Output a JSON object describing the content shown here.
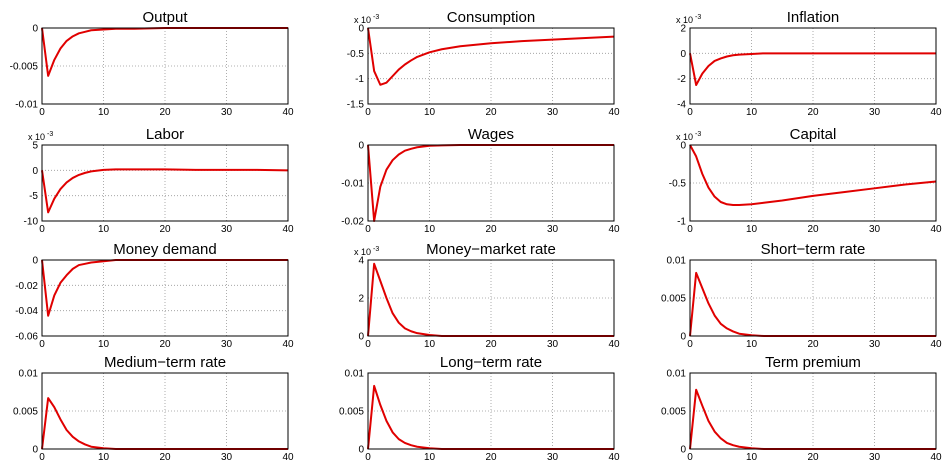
{
  "chart_data": [
    {
      "type": "line",
      "title": "Output",
      "x": [
        0,
        1,
        2,
        3,
        4,
        5,
        6,
        7,
        8,
        10,
        12,
        15,
        20,
        25,
        30,
        35,
        40
      ],
      "values": [
        0,
        -0.0063,
        -0.0042,
        -0.0027,
        -0.0017,
        -0.0011,
        -0.0007,
        -0.0005,
        -0.0003,
        -0.0002,
        -0.0001,
        -0.0001,
        0,
        0,
        0,
        0,
        0
      ],
      "color": "#e00000",
      "xlim": [
        0,
        40
      ],
      "xticks": [
        0,
        10,
        20,
        30,
        40
      ],
      "ylim": [
        -0.01,
        0
      ],
      "yticks": [
        -0.01,
        -0.005,
        0
      ],
      "grid": true
    },
    {
      "type": "line",
      "title": "Consumption",
      "scale_label": "x 10",
      "scale_exponent": "-3",
      "x": [
        0,
        1,
        2,
        3,
        4,
        5,
        6,
        7,
        8,
        10,
        12,
        15,
        20,
        25,
        30,
        35,
        40
      ],
      "values": [
        0,
        -0.85,
        -1.12,
        -1.08,
        -0.95,
        -0.82,
        -0.72,
        -0.64,
        -0.57,
        -0.48,
        -0.42,
        -0.36,
        -0.3,
        -0.26,
        -0.23,
        -0.2,
        -0.17
      ],
      "color": "#e00000",
      "xlim": [
        0,
        40
      ],
      "xticks": [
        0,
        10,
        20,
        30,
        40
      ],
      "ylim": [
        -1.5,
        0
      ],
      "yticks": [
        -1.5,
        -1,
        -0.5,
        0
      ],
      "grid": true
    },
    {
      "type": "line",
      "title": "Inflation",
      "scale_label": "x 10",
      "scale_exponent": "-3",
      "x": [
        0,
        1,
        2,
        3,
        4,
        5,
        6,
        7,
        8,
        10,
        12,
        15,
        20,
        25,
        30,
        35,
        40
      ],
      "values": [
        0,
        -2.5,
        -1.6,
        -1.0,
        -0.6,
        -0.4,
        -0.25,
        -0.15,
        -0.1,
        -0.05,
        0,
        0,
        0,
        0,
        0,
        0,
        0
      ],
      "color": "#e00000",
      "xlim": [
        0,
        40
      ],
      "xticks": [
        0,
        10,
        20,
        30,
        40
      ],
      "ylim": [
        -4,
        2
      ],
      "yticks": [
        -4,
        -2,
        0,
        2
      ],
      "grid": true
    },
    {
      "type": "line",
      "title": "Labor",
      "scale_label": "x 10",
      "scale_exponent": "-3",
      "x": [
        0,
        1,
        2,
        3,
        4,
        5,
        6,
        7,
        8,
        10,
        12,
        15,
        20,
        25,
        30,
        35,
        40
      ],
      "values": [
        0,
        -8.3,
        -5.6,
        -3.7,
        -2.4,
        -1.5,
        -0.9,
        -0.5,
        -0.2,
        0.1,
        0.2,
        0.2,
        0.2,
        0.1,
        0.1,
        0.1,
        0
      ],
      "color": "#e00000",
      "xlim": [
        0,
        40
      ],
      "xticks": [
        0,
        10,
        20,
        30,
        40
      ],
      "ylim": [
        -10,
        5
      ],
      "yticks": [
        -10,
        -5,
        0,
        5
      ],
      "grid": true
    },
    {
      "type": "line",
      "title": "Wages",
      "x": [
        0,
        1,
        2,
        3,
        4,
        5,
        6,
        7,
        8,
        10,
        12,
        15,
        20,
        25,
        30,
        35,
        40
      ],
      "values": [
        0,
        -0.02,
        -0.011,
        -0.0065,
        -0.004,
        -0.0025,
        -0.0015,
        -0.001,
        -0.0006,
        -0.0002,
        -0.0001,
        0,
        0,
        0,
        0,
        0,
        0
      ],
      "color": "#e00000",
      "xlim": [
        0,
        40
      ],
      "xticks": [
        0,
        10,
        20,
        30,
        40
      ],
      "ylim": [
        -0.02,
        0
      ],
      "yticks": [
        -0.02,
        -0.01,
        0
      ],
      "grid": true
    },
    {
      "type": "line",
      "title": "Capital",
      "scale_label": "x 10",
      "scale_exponent": "-3",
      "x": [
        0,
        1,
        2,
        3,
        4,
        5,
        6,
        7,
        8,
        10,
        12,
        15,
        20,
        25,
        30,
        35,
        40
      ],
      "values": [
        0,
        -0.15,
        -0.38,
        -0.56,
        -0.68,
        -0.75,
        -0.78,
        -0.79,
        -0.79,
        -0.78,
        -0.76,
        -0.73,
        -0.67,
        -0.62,
        -0.57,
        -0.52,
        -0.48
      ],
      "color": "#e00000",
      "xlim": [
        0,
        40
      ],
      "xticks": [
        0,
        10,
        20,
        30,
        40
      ],
      "ylim": [
        -1,
        0
      ],
      "yticks": [
        -1,
        -0.5,
        0
      ],
      "grid": true
    },
    {
      "type": "line",
      "title": "Money demand",
      "x": [
        0,
        1,
        2,
        3,
        4,
        5,
        6,
        7,
        8,
        10,
        12,
        15,
        20,
        25,
        30,
        35,
        40
      ],
      "values": [
        0,
        -0.044,
        -0.028,
        -0.018,
        -0.012,
        -0.007,
        -0.004,
        -0.003,
        -0.002,
        -0.001,
        0,
        0,
        0,
        0,
        0,
        0,
        0
      ],
      "color": "#e00000",
      "xlim": [
        0,
        40
      ],
      "xticks": [
        0,
        10,
        20,
        30,
        40
      ],
      "ylim": [
        -0.06,
        0
      ],
      "yticks": [
        -0.06,
        -0.04,
        -0.02,
        0
      ],
      "grid": true
    },
    {
      "type": "line",
      "title": "Money−market rate",
      "scale_label": "x 10",
      "scale_exponent": "-3",
      "x": [
        0,
        1,
        2,
        3,
        4,
        5,
        6,
        7,
        8,
        10,
        12,
        15,
        20,
        25,
        30,
        35,
        40
      ],
      "values": [
        0,
        3.8,
        2.9,
        2.0,
        1.2,
        0.7,
        0.4,
        0.25,
        0.15,
        0.05,
        0,
        0,
        0,
        0,
        0,
        0,
        0
      ],
      "color": "#e00000",
      "xlim": [
        0,
        40
      ],
      "xticks": [
        0,
        10,
        20,
        30,
        40
      ],
      "ylim": [
        0,
        4
      ],
      "yticks": [
        0,
        2,
        4
      ],
      "grid": true
    },
    {
      "type": "line",
      "title": "Short−term rate",
      "x": [
        0,
        1,
        2,
        3,
        4,
        5,
        6,
        7,
        8,
        10,
        12,
        15,
        20,
        25,
        30,
        35,
        40
      ],
      "values": [
        0,
        0.0083,
        0.0063,
        0.0043,
        0.0027,
        0.0016,
        0.001,
        0.0006,
        0.0003,
        0.0001,
        0,
        0,
        0,
        0,
        0,
        0,
        0
      ],
      "color": "#e00000",
      "xlim": [
        0,
        40
      ],
      "xticks": [
        0,
        10,
        20,
        30,
        40
      ],
      "ylim": [
        0,
        0.01
      ],
      "yticks": [
        0,
        0.005,
        0.01
      ],
      "grid": true
    },
    {
      "type": "line",
      "title": "Medium−term rate",
      "x": [
        0,
        1,
        2,
        3,
        4,
        5,
        6,
        7,
        8,
        10,
        12,
        15,
        20,
        25,
        30,
        35,
        40
      ],
      "values": [
        0,
        0.0067,
        0.0055,
        0.0039,
        0.0025,
        0.0016,
        0.001,
        0.0006,
        0.0003,
        0.0001,
        0,
        0,
        0,
        0,
        0,
        0,
        0
      ],
      "color": "#e00000",
      "xlim": [
        0,
        40
      ],
      "xticks": [
        0,
        10,
        20,
        30,
        40
      ],
      "ylim": [
        0,
        0.01
      ],
      "yticks": [
        0,
        0.005,
        0.01
      ],
      "grid": true
    },
    {
      "type": "line",
      "title": "Long−term rate",
      "x": [
        0,
        1,
        2,
        3,
        4,
        5,
        6,
        7,
        8,
        10,
        12,
        15,
        20,
        25,
        30,
        35,
        40
      ],
      "values": [
        0,
        0.0083,
        0.0058,
        0.0037,
        0.0022,
        0.0013,
        0.0008,
        0.0005,
        0.0003,
        0.0001,
        0,
        0,
        0,
        0,
        0,
        0,
        0
      ],
      "color": "#e00000",
      "xlim": [
        0,
        40
      ],
      "xticks": [
        0,
        10,
        20,
        30,
        40
      ],
      "ylim": [
        0,
        0.01
      ],
      "yticks": [
        0,
        0.005,
        0.01
      ],
      "grid": true
    },
    {
      "type": "line",
      "title": "Term premium",
      "x": [
        0,
        1,
        2,
        3,
        4,
        5,
        6,
        7,
        8,
        10,
        12,
        15,
        20,
        25,
        30,
        35,
        40
      ],
      "values": [
        0,
        0.0078,
        0.0057,
        0.0037,
        0.0023,
        0.0014,
        0.0008,
        0.0005,
        0.0003,
        0.0001,
        0,
        0,
        0,
        0,
        0,
        0,
        0
      ],
      "color": "#e00000",
      "xlim": [
        0,
        40
      ],
      "xticks": [
        0,
        10,
        20,
        30,
        40
      ],
      "ylim": [
        0,
        0.01
      ],
      "yticks": [
        0,
        0.005,
        0.01
      ],
      "grid": true
    }
  ]
}
